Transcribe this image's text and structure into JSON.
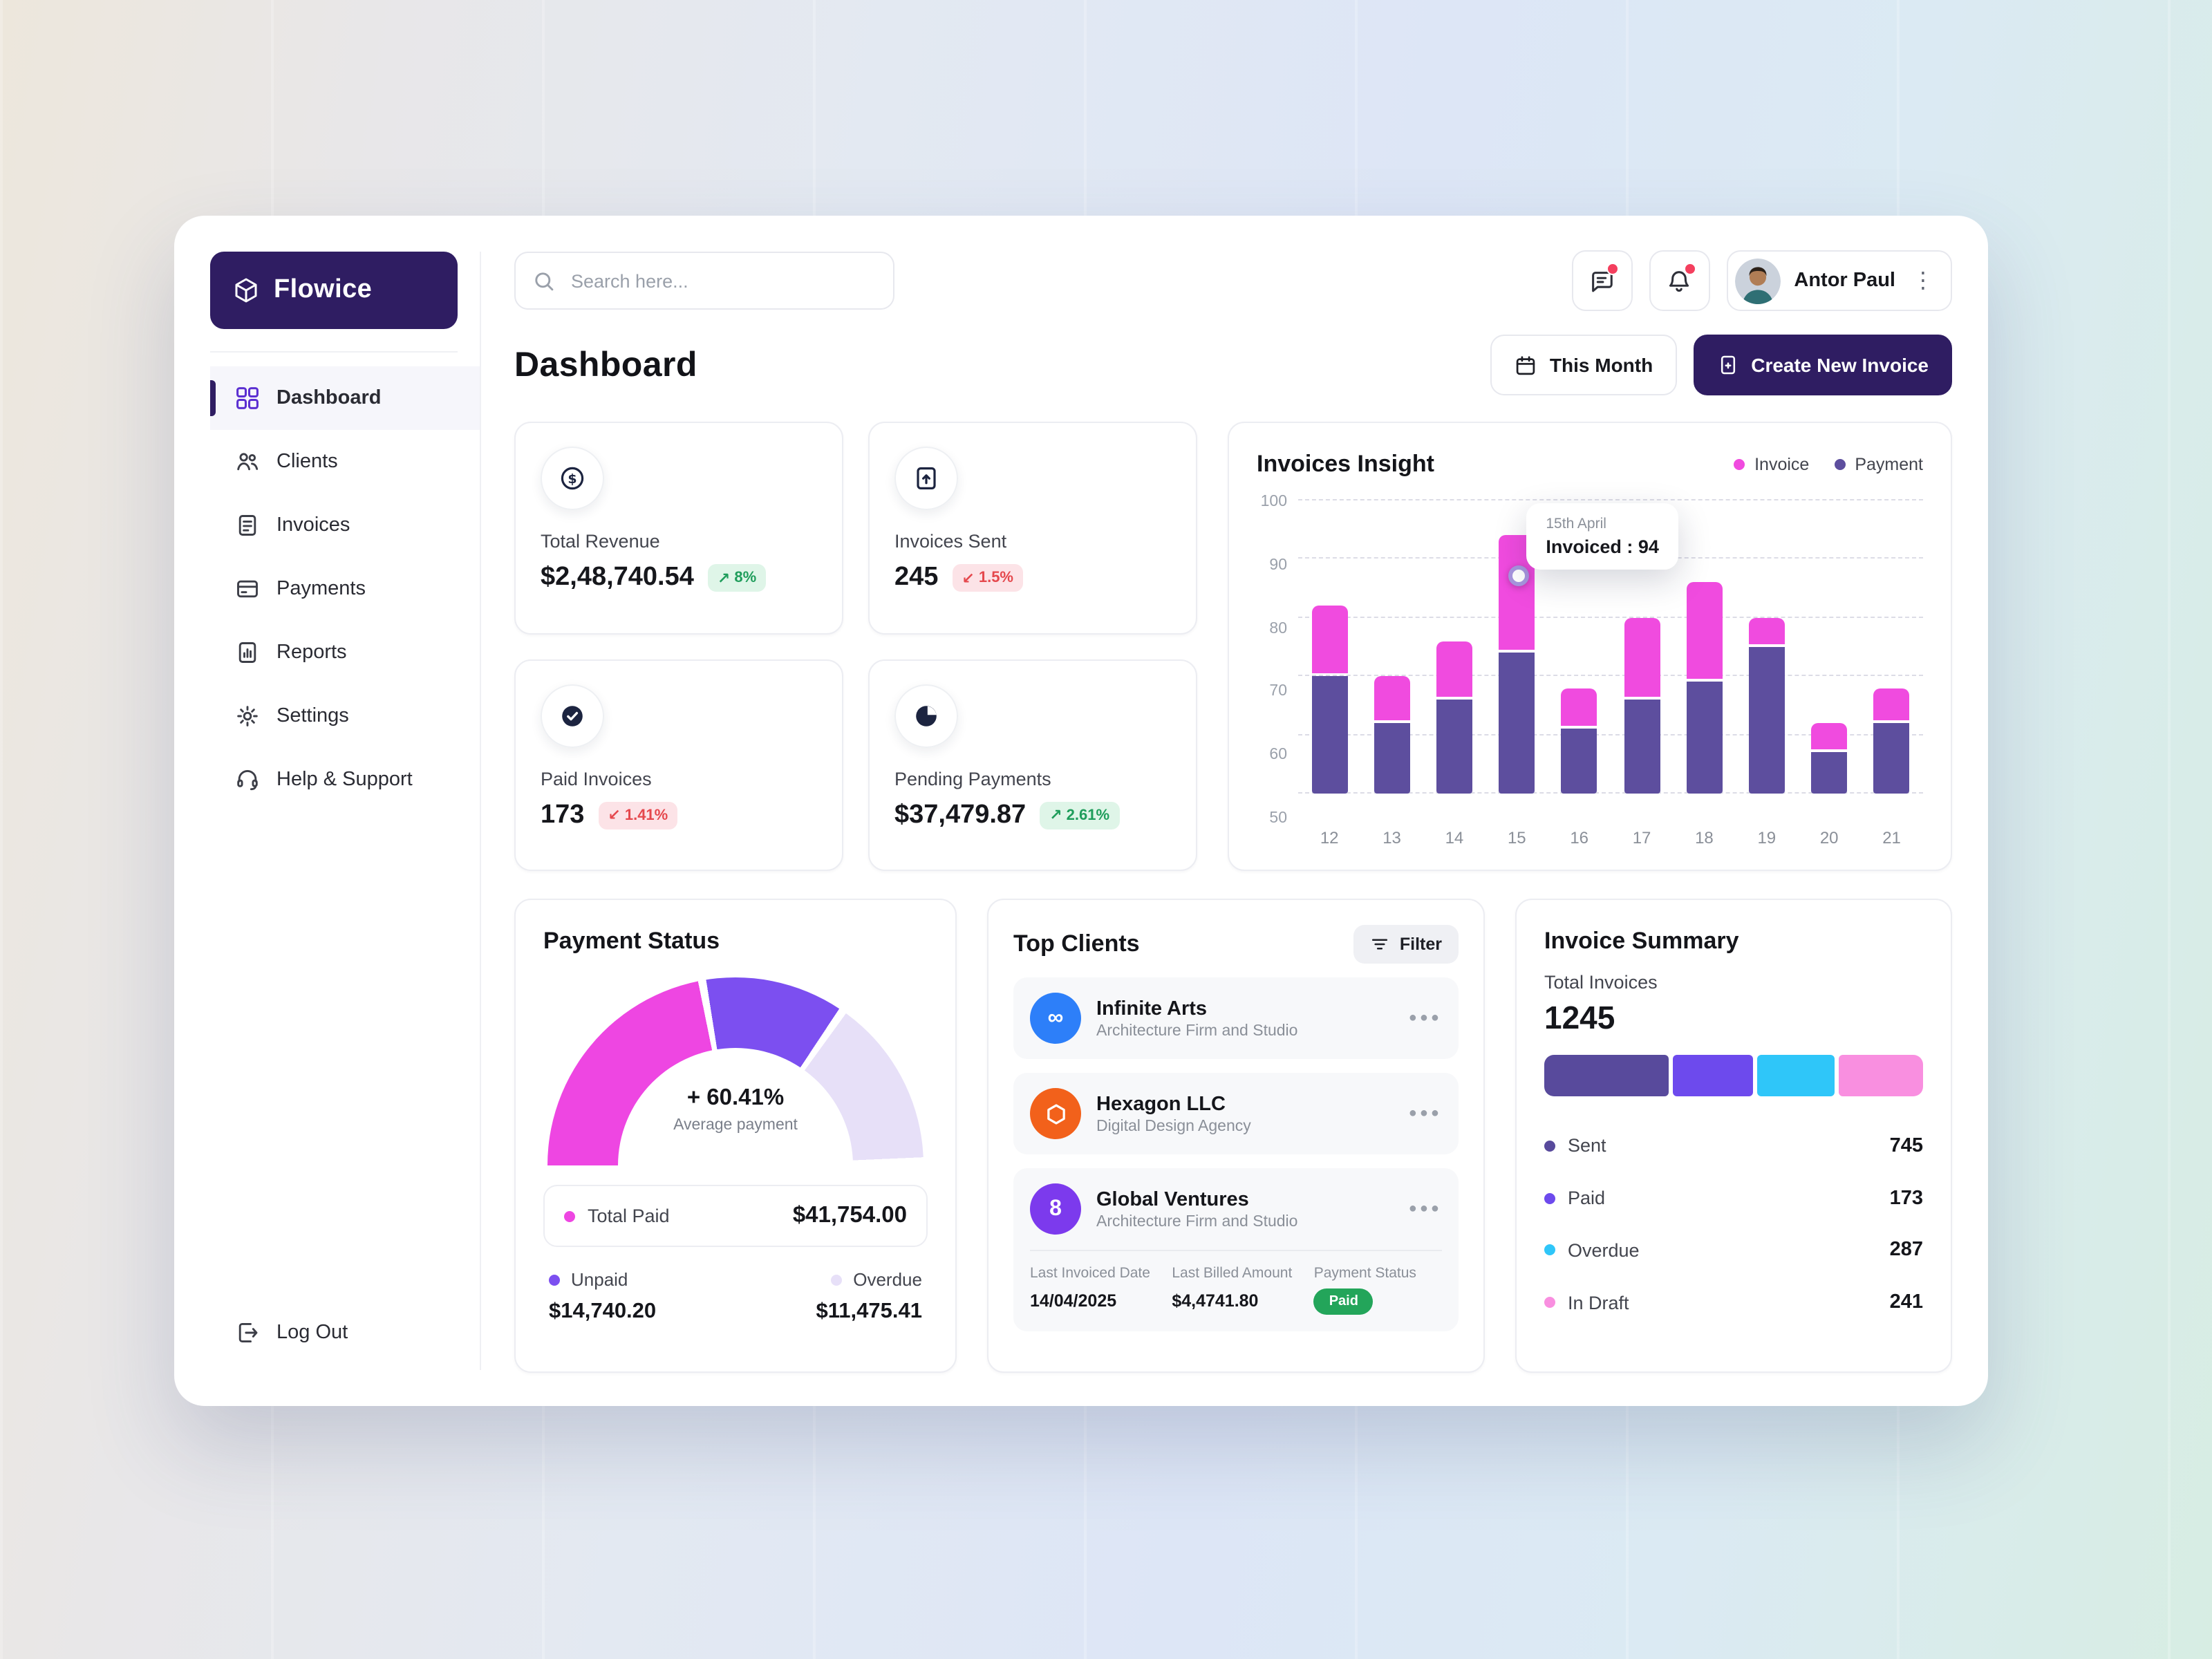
{
  "app": {
    "name": "Flowice"
  },
  "sidebar": {
    "items": [
      {
        "label": "Dashboard"
      },
      {
        "label": "Clients"
      },
      {
        "label": "Invoices"
      },
      {
        "label": "Payments"
      },
      {
        "label": "Reports"
      },
      {
        "label": "Settings"
      },
      {
        "label": "Help & Support"
      }
    ],
    "logout_label": "Log Out"
  },
  "topbar": {
    "search_placeholder": "Search here...",
    "user_name": "Antor Paul"
  },
  "header": {
    "title": "Dashboard",
    "period_button": "This Month",
    "create_button": "Create New Invoice"
  },
  "stats": [
    {
      "label": "Total Revenue",
      "value": "$2,48,740.54",
      "arrow": "↗",
      "delta": "8%",
      "trend": "up"
    },
    {
      "label": "Invoices Sent",
      "value": "245",
      "arrow": "↙",
      "delta": "1.5%",
      "trend": "down"
    },
    {
      "label": "Paid Invoices",
      "value": "173",
      "arrow": "↙",
      "delta": "1.41%",
      "trend": "down"
    },
    {
      "label": "Pending Payments",
      "value": "$37,479.87",
      "arrow": "↗",
      "delta": "2.61%",
      "trend": "up"
    }
  ],
  "chart_data": [
    {
      "type": "bar",
      "variant": "stacked-vertical",
      "title": "Invoices Insight",
      "categories": [
        "12",
        "13",
        "14",
        "15",
        "16",
        "17",
        "18",
        "19",
        "20",
        "21"
      ],
      "series": [
        {
          "name": "Invoice",
          "color": "#F04BDF",
          "values": [
            82,
            70,
            76,
            94,
            68,
            80,
            86,
            80,
            62,
            68
          ],
          "note": "bar total height (pink top segment)"
        },
        {
          "name": "Payment",
          "color": "#5D4E9E",
          "values": [
            70,
            62,
            66,
            74,
            61,
            66,
            69,
            75,
            57,
            62
          ],
          "note": "purple lower segment height"
        }
      ],
      "ylim": [
        50,
        100
      ],
      "yticks": [
        50,
        60,
        70,
        80,
        90,
        100
      ],
      "xlabel": "",
      "ylabel": "",
      "grid": "dashed-horizontal",
      "legend_position": "top-right",
      "tooltip": {
        "category_index": 3,
        "title": "15th April",
        "label": "Invoiced : 94"
      }
    },
    {
      "type": "pie",
      "variant": "half-donut-gauge",
      "title": "Payment Status",
      "center_label": "+ 60.41%",
      "center_sublabel": "Average payment",
      "slices": [
        {
          "label": "Total Paid",
          "color": "#EE46E2",
          "percent": 45
        },
        {
          "label": "Unpaid",
          "color": "#7C4FF0",
          "percent": 25
        },
        {
          "label": "Overdue",
          "color": "#E7E0F8",
          "percent": 30
        }
      ]
    },
    {
      "type": "bar",
      "variant": "horizontal-stacked-summary",
      "title": "Invoice Summary",
      "categories": [
        "Sent",
        "Paid",
        "Overdue",
        "In Draft"
      ],
      "values": [
        745,
        173,
        287,
        241
      ],
      "colors": [
        "#584A9C",
        "#6D4AED",
        "#2FC6F9",
        "#F98FE0"
      ],
      "total": 1245
    }
  ],
  "payment_status": {
    "title": "Payment Status",
    "gauge_value": "+ 60.41%",
    "gauge_sublabel": "Average payment",
    "total_paid_label": "Total Paid",
    "total_paid_value": "$41,754.00",
    "unpaid_label": "Unpaid",
    "unpaid_value": "$14,740.20",
    "overdue_label": "Overdue",
    "overdue_value": "$11,475.41"
  },
  "top_clients": {
    "title": "Top Clients",
    "filter_label": "Filter",
    "clients": [
      {
        "name": "Infinite Arts",
        "subtitle": "Architecture Firm and Studio",
        "color": "#2D7FF9",
        "icon": "infinity"
      },
      {
        "name": "Hexagon LLC",
        "subtitle": "Digital Design Agency",
        "color": "#F2611B",
        "icon": "hexagon"
      },
      {
        "name": "Global Ventures",
        "subtitle": "Architecture Firm and Studio",
        "color": "#7C3AED",
        "icon": "figure-eight"
      }
    ],
    "details": {
      "col1_header": "Last Invoiced Date",
      "col1_value": "14/04/2025",
      "col2_header": "Last Billed Amount",
      "col2_value": "$4,4741.80",
      "col3_header": "Payment Status",
      "col3_value": "Paid"
    }
  },
  "invoice_summary": {
    "title": "Invoice Summary",
    "total_label": "Total Invoices",
    "total_value": "1245",
    "rows": [
      {
        "label": "Sent",
        "value": "745",
        "color": "#584A9C",
        "bar_percent": 34
      },
      {
        "label": "Paid",
        "value": "173",
        "color": "#6D4AED",
        "bar_percent": 22
      },
      {
        "label": "Overdue",
        "value": "287",
        "color": "#2FC6F9",
        "bar_percent": 21
      },
      {
        "label": "In Draft",
        "value": "241",
        "color": "#F98FE0",
        "bar_percent": 23
      }
    ]
  },
  "colors": {
    "brand_dark": "#2F1D62",
    "accent_purple": "#5B2FD1",
    "invoice_pink": "#F04BDF",
    "payment_purple": "#5D4E9E",
    "positive_text": "#1F9D5B",
    "positive_bg": "#DFF5E8",
    "negative_text": "#E5484D",
    "negative_bg": "#FCE3E7",
    "paid_badge_green": "#23A55A"
  }
}
